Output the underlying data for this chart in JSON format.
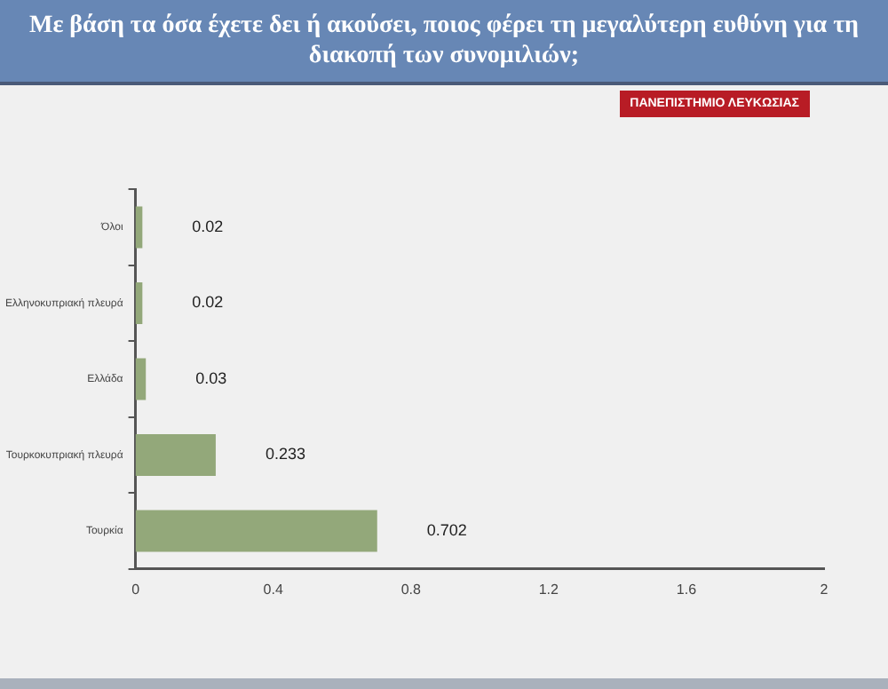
{
  "chart_data": {
    "type": "bar",
    "orientation": "horizontal",
    "title": "Με βάση τα όσα έχετε δει ή ακούσει, ποιος φέρει τη μεγαλύτερη ευθύνη για τη διακοπή των συνομιλιών;",
    "categories": [
      "Όλοι",
      "Ελληνοκυπριακή πλευρά",
      "Ελλάδα",
      "Τουρκοκυπριακή πλευρά",
      "Τουρκία"
    ],
    "values": [
      0.02,
      0.02,
      0.03,
      0.233,
      0.702
    ],
    "color": "#93a87a",
    "xlim": [
      0,
      2
    ],
    "xticks": [
      0,
      0.4,
      0.8,
      1.2,
      1.6,
      2
    ],
    "grid": false,
    "legend": false,
    "data_labels": true,
    "annotations": [
      "ΠΑΝΕΠΙΣΤΗΜΙΟ ΛΕΥΚΩΣΙΑΣ"
    ]
  }
}
